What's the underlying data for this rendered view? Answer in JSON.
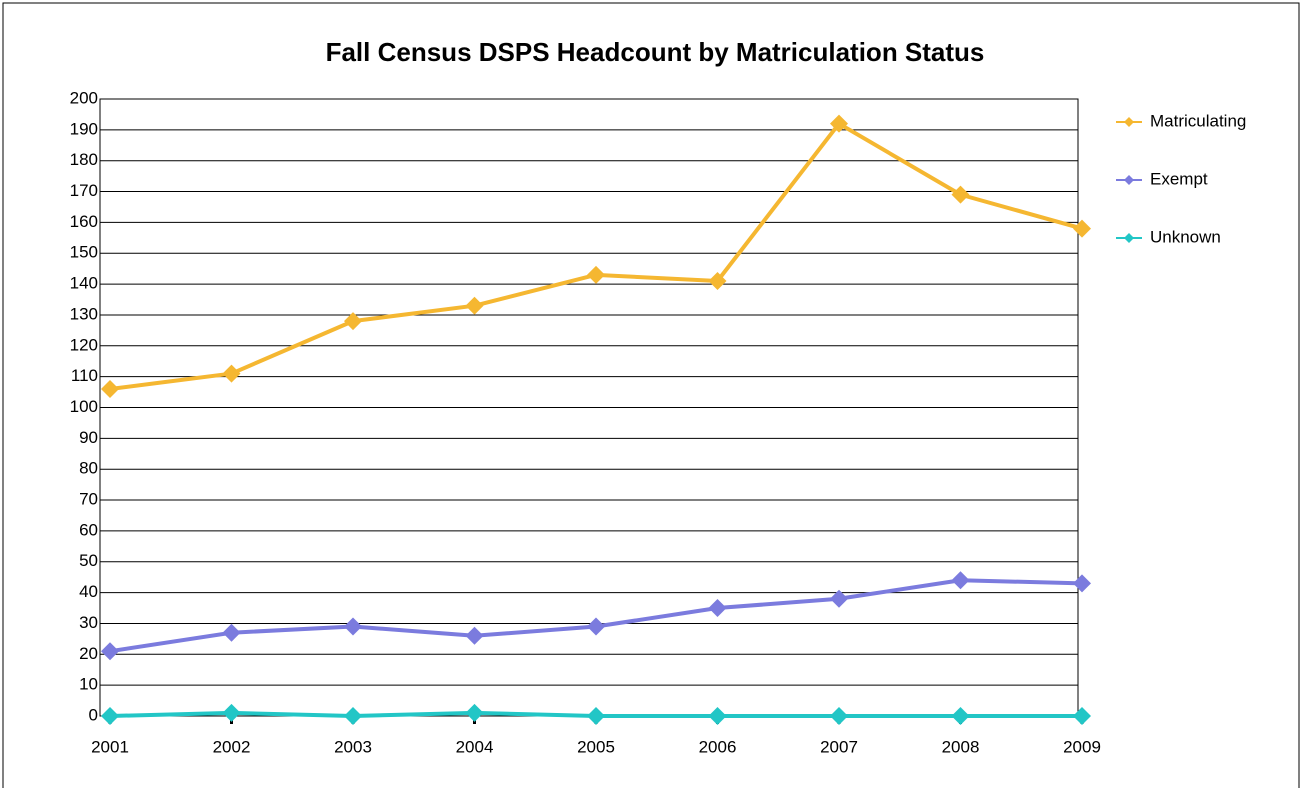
{
  "chart_data": {
    "type": "line",
    "title": "Fall Census DSPS Headcount by Matriculation Status",
    "categories": [
      "2001",
      "2002",
      "2003",
      "2004",
      "2005",
      "2006",
      "2007",
      "2008",
      "2009"
    ],
    "series": [
      {
        "name": "Matriculating",
        "color": "#f5b731",
        "values": [
          106,
          111,
          128,
          133,
          143,
          141,
          192,
          169,
          158
        ]
      },
      {
        "name": "Exempt",
        "color": "#7b7bde",
        "values": [
          21,
          27,
          29,
          26,
          29,
          35,
          38,
          44,
          43
        ]
      },
      {
        "name": "Unknown",
        "color": "#22c6c6",
        "values": [
          0,
          1,
          0,
          1,
          0,
          0,
          0,
          0,
          0
        ]
      }
    ],
    "ylim": [
      0,
      200
    ],
    "yticks": [
      0,
      10,
      20,
      30,
      40,
      50,
      60,
      70,
      80,
      90,
      100,
      110,
      120,
      130,
      140,
      150,
      160,
      170,
      180,
      190,
      200
    ],
    "grid": true,
    "legend": "right"
  }
}
